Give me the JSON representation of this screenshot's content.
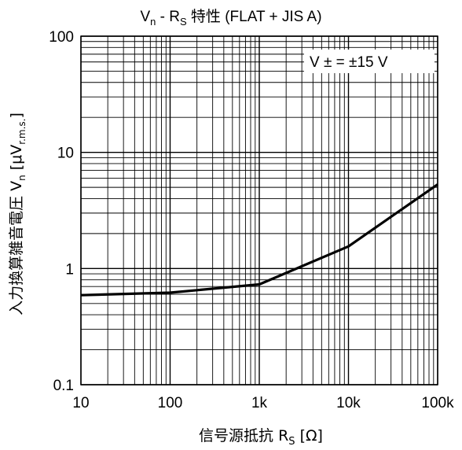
{
  "chart_data": {
    "type": "line",
    "title": {
      "main": "V",
      "sub1": "n",
      "mid": " - R",
      "sub2": "S",
      "rest": " 特性 (FLAT + JIS A)"
    },
    "xlabel": {
      "main": "信号源抵抗 R",
      "sub": "S",
      "rest": " [Ω]"
    },
    "ylabel": {
      "main": "入力換算雑音電圧 V",
      "sub1": "n",
      "mid": " [μV",
      "sub2": "r.m.s.",
      "rest": "]"
    },
    "annotation": "V ± = ±15 V",
    "x_scale": "log",
    "y_scale": "log",
    "xlim": [
      10,
      100000
    ],
    "ylim": [
      0.1,
      100
    ],
    "x_ticks": [
      10,
      100,
      1000,
      10000,
      100000
    ],
    "x_tick_labels": [
      "10",
      "100",
      "1k",
      "10k",
      "100k"
    ],
    "y_ticks": [
      0.1,
      1,
      10,
      100
    ],
    "y_tick_labels": [
      "0.1",
      "1",
      "10",
      "100"
    ],
    "grid": true,
    "series": [
      {
        "x": [
          10,
          100,
          1000,
          10000,
          100000
        ],
        "y": [
          0.59,
          0.62,
          0.73,
          1.55,
          5.3
        ]
      }
    ],
    "line_color": "#000000"
  }
}
